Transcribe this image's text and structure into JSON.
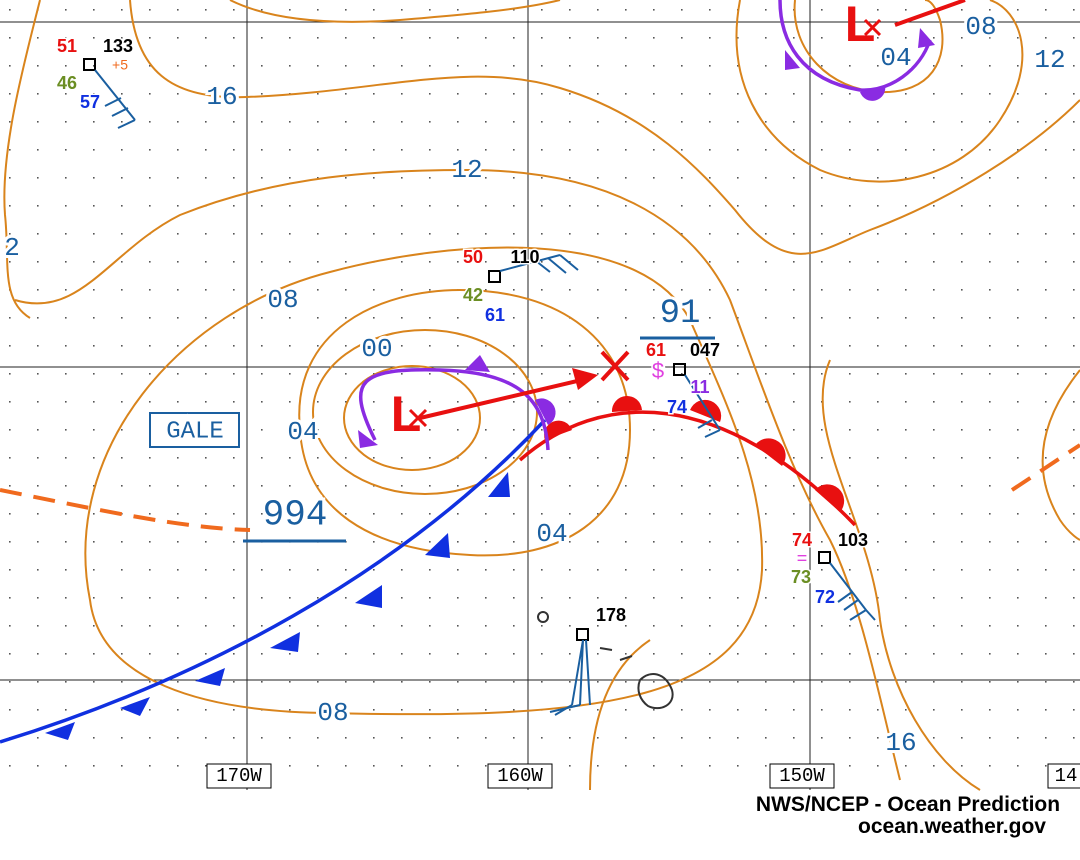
{
  "map": {
    "isobar_labels": [
      "16",
      "12",
      "08",
      "00",
      "04",
      "04",
      "08",
      "2",
      "08",
      "04",
      "12",
      "16"
    ],
    "central_pressures": [
      "994",
      "91"
    ],
    "lows": [
      "L",
      "L"
    ],
    "warning": "GALE",
    "stations": [
      {
        "temp": "51",
        "pressure": "133",
        "tendency": "+5",
        "dewpoint": "46",
        "sst": "57"
      },
      {
        "temp": "50",
        "pressure": "110",
        "dewpoint": "42",
        "sst": "61"
      },
      {
        "temp": "61",
        "pressure": "047",
        "symbol": "$",
        "wave": "11",
        "sst": "74"
      },
      {
        "temp": "74",
        "pressure": "103",
        "symbol": "=",
        "dewpoint": "73",
        "sst": "72"
      },
      {
        "pressure": "178"
      }
    ],
    "longitudes": [
      "170W",
      "160W",
      "150W",
      "14"
    ],
    "credit": {
      "agency": "NWS/NCEP - Ocean Prediction",
      "site": "ocean.weather.gov"
    }
  }
}
